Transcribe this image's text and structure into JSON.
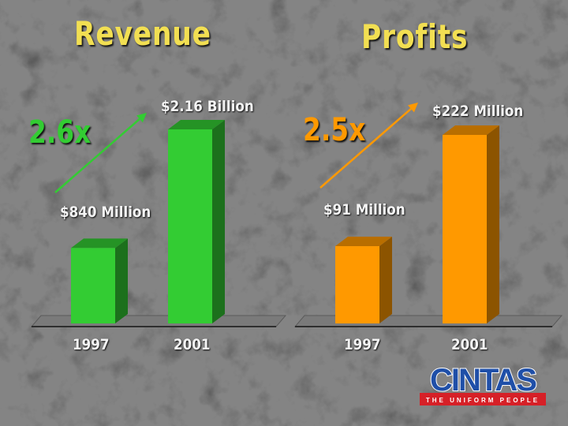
{
  "colors": {
    "title": "#f2df52",
    "revenue": "#33cc33",
    "profits": "#ff9900",
    "text": "#f4f4f4",
    "logo_blue": "#1f4fa8",
    "logo_red": "#d62027"
  },
  "chart_data": [
    {
      "type": "bar",
      "title": "Revenue",
      "categories": [
        "1997",
        "2001"
      ],
      "values": [
        840,
        2160
      ],
      "value_labels": [
        "$840 Million",
        "$2.16 Billion"
      ],
      "annotation": "2.6x",
      "color": "#33cc33"
    },
    {
      "type": "bar",
      "title": "Profits",
      "categories": [
        "1997",
        "2001"
      ],
      "values": [
        91,
        222
      ],
      "value_labels": [
        "$91 Million",
        "$222 Million"
      ],
      "annotation": "2.5x",
      "color": "#ff9900"
    }
  ],
  "logo": {
    "wordmark": "CINTAS",
    "tagline": "THE UNIFORM PEOPLE"
  }
}
